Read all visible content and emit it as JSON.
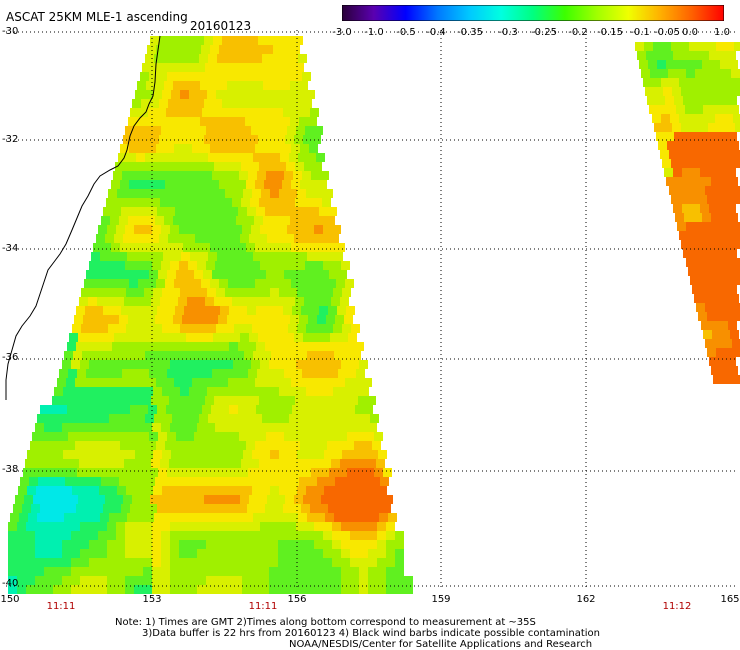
{
  "header": {
    "title": "ASCAT 25KM MLE-1 ascending",
    "date": "20160123"
  },
  "colorbar": {
    "labels": [
      "-3.0",
      "-1.0",
      "-0.5",
      "-0.4",
      "-0.35",
      "-0.3",
      "-0.25",
      "-0.2",
      "-0.15",
      "-0.1",
      "-0.05",
      "0.0",
      "1.0"
    ],
    "colors": [
      "#2a0038",
      "#5a00b0",
      "#0000ff",
      "#0078ff",
      "#00c8ff",
      "#00ffe0",
      "#00ff80",
      "#3cff00",
      "#a0ff00",
      "#f0ff00",
      "#ffb000",
      "#ff6000",
      "#ff0000"
    ]
  },
  "axes": {
    "lat_labels": [
      "-30",
      "-32",
      "-34",
      "-36",
      "-38",
      "-40"
    ],
    "lon_labels": [
      "150",
      "153",
      "156",
      "159",
      "162",
      "165"
    ],
    "pass_times": [
      "11:11",
      "11:11",
      "11:12"
    ]
  },
  "notes": {
    "line1": "Note: 1) Times are GMT 2)Times along bottom correspond to measurement at ~35S",
    "line2": "3)Data buffer is 22 hrs from 20160123 4) Black wind barbs indicate possible contamination",
    "line3": "NOAA/NESDIS/Center for Satellite Applications and Research"
  }
}
